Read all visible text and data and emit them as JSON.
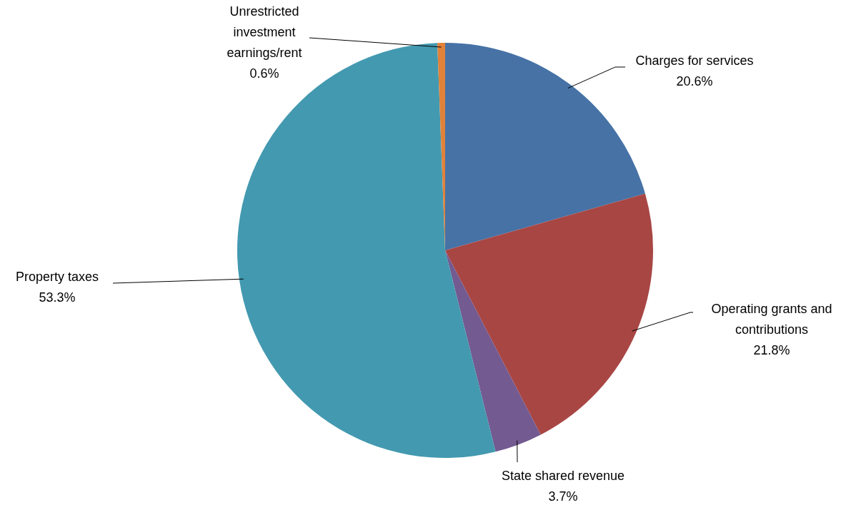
{
  "chart_data": {
    "type": "pie",
    "categories": [
      "Charges for services",
      "Operating grants and contributions",
      "State shared revenue",
      "Property taxes",
      "Unrestricted investment earnings/rent"
    ],
    "values": [
      20.6,
      21.8,
      3.7,
      53.3,
      0.6
    ],
    "colors": [
      "#4672a6",
      "#a84644",
      "#735a91",
      "#4399b0",
      "#e0823a"
    ],
    "value_labels": [
      "20.6%",
      "21.8%",
      "3.7%",
      "53.3%",
      "0.6%"
    ],
    "legend": false
  }
}
